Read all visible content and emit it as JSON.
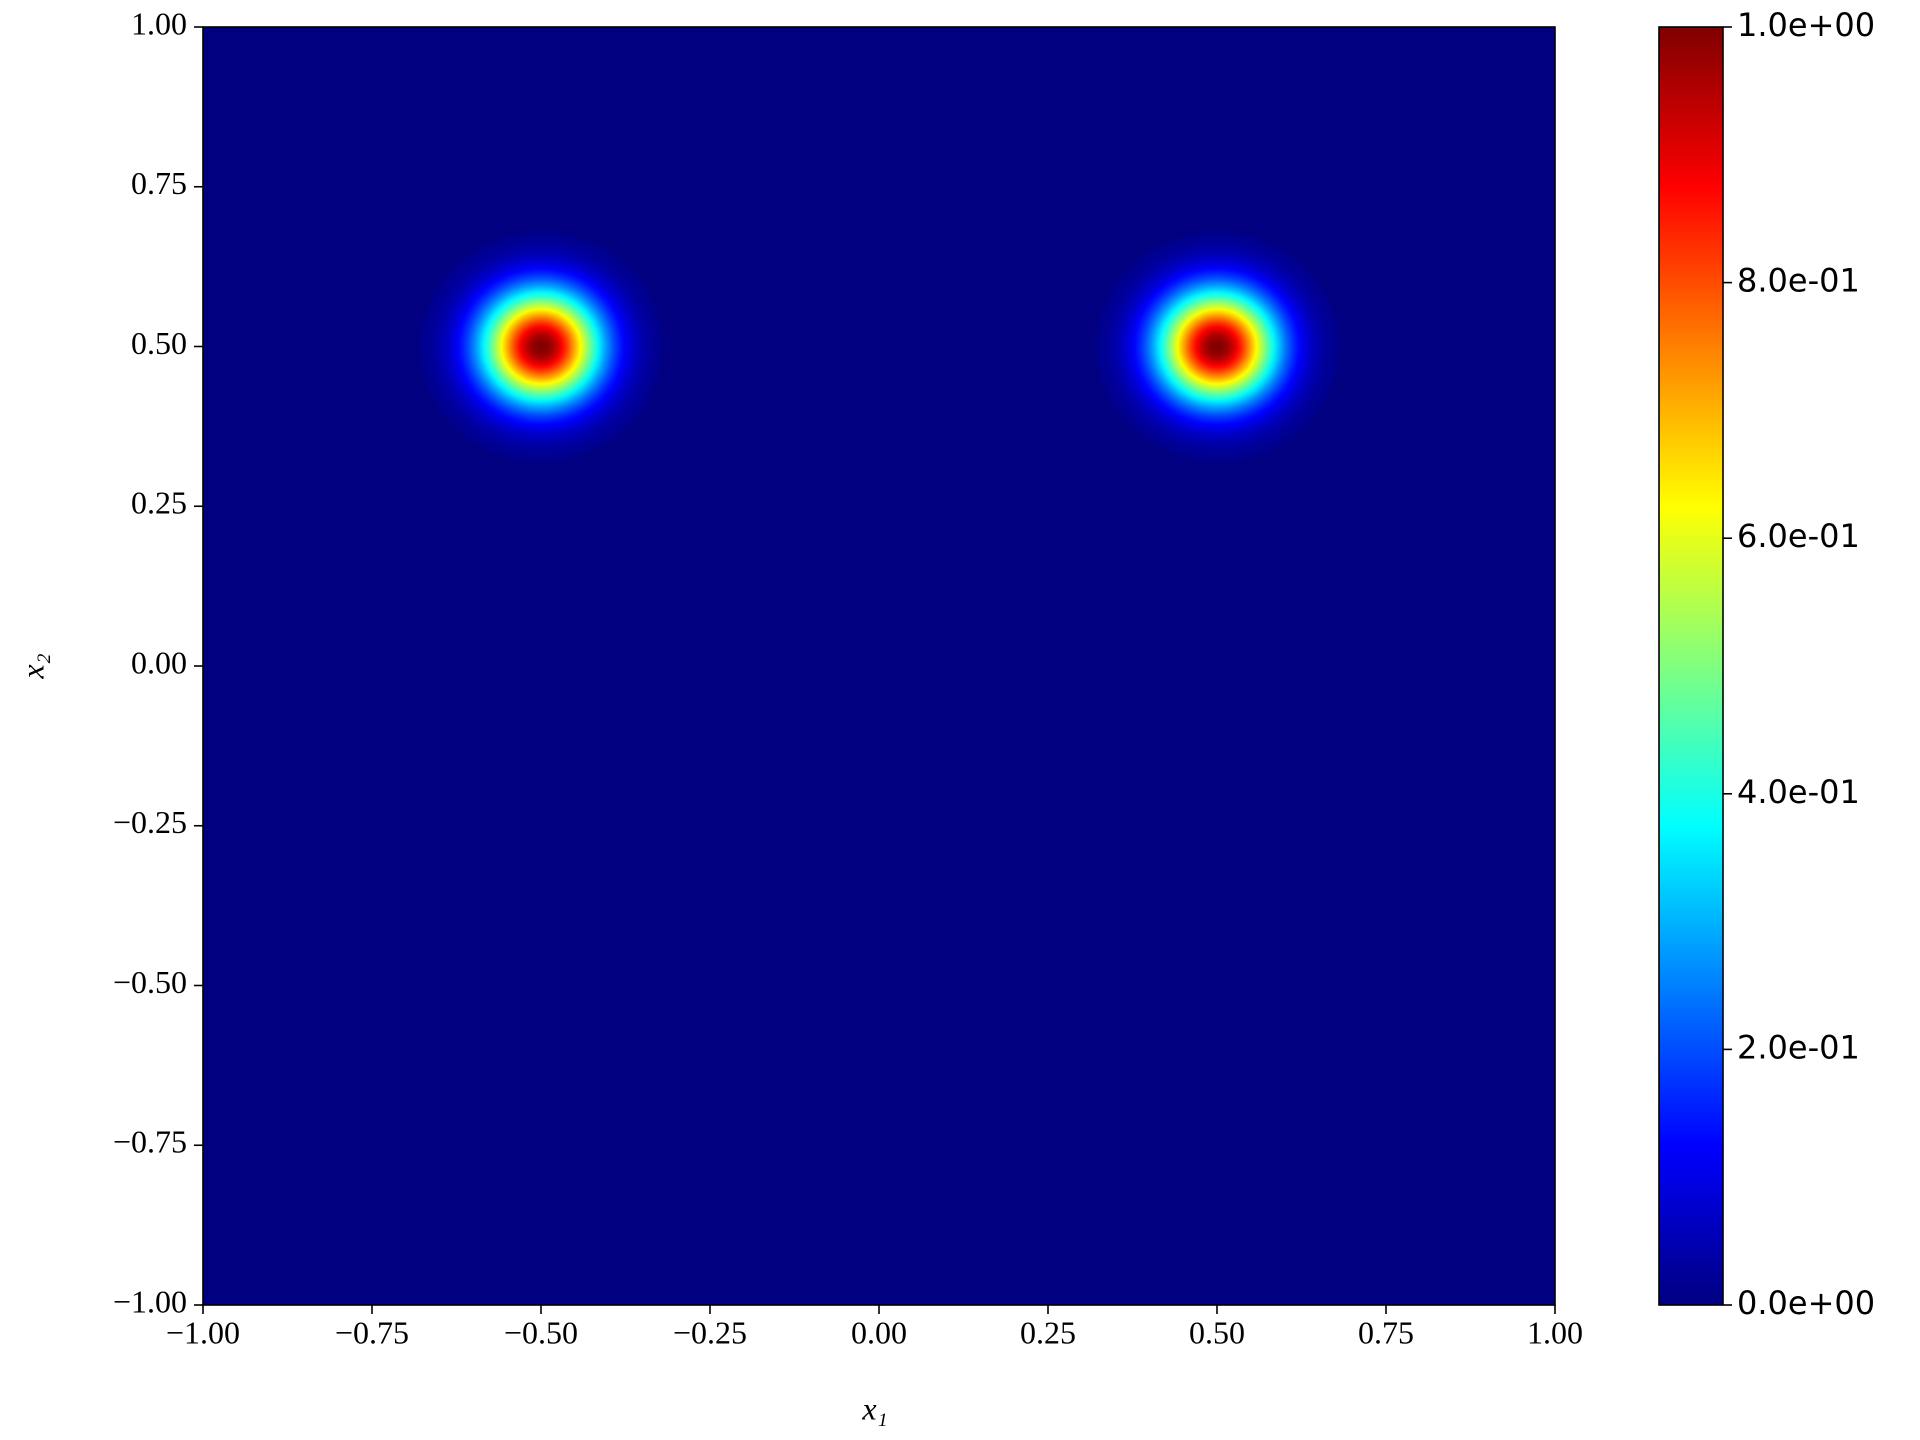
{
  "chart_data": {
    "type": "heatmap",
    "xlabel": "x₁",
    "ylabel": "x₂",
    "xlim": [
      -1,
      1
    ],
    "ylim": [
      -1,
      1
    ],
    "xticks": [
      {
        "value": -1,
        "label": "−1.00"
      },
      {
        "value": -0.75,
        "label": "−0.75"
      },
      {
        "value": -0.5,
        "label": "−0.50"
      },
      {
        "value": -0.25,
        "label": "−0.25"
      },
      {
        "value": 0,
        "label": "0.00"
      },
      {
        "value": 0.25,
        "label": "0.25"
      },
      {
        "value": 0.5,
        "label": "0.50"
      },
      {
        "value": 0.75,
        "label": "0.75"
      },
      {
        "value": 1,
        "label": "1.00"
      }
    ],
    "yticks": [
      {
        "value": -1,
        "label": "−1.00"
      },
      {
        "value": -0.75,
        "label": "−0.75"
      },
      {
        "value": -0.5,
        "label": "−0.50"
      },
      {
        "value": -0.25,
        "label": "−0.25"
      },
      {
        "value": 0,
        "label": "0.00"
      },
      {
        "value": 0.25,
        "label": "0.25"
      },
      {
        "value": 0.5,
        "label": "0.50"
      },
      {
        "value": 0.75,
        "label": "0.75"
      },
      {
        "value": 1,
        "label": "1.00"
      }
    ],
    "colormap": "jet",
    "clim": [
      0,
      1
    ],
    "cticks": [
      {
        "value": 0,
        "label": "0.0e+00"
      },
      {
        "value": 0.2,
        "label": "2.0e-01"
      },
      {
        "value": 0.4,
        "label": "4.0e-01"
      },
      {
        "value": 0.6,
        "label": "6.0e-01"
      },
      {
        "value": 0.8,
        "label": "8.0e-01"
      },
      {
        "value": 1,
        "label": "1.0e+00"
      }
    ],
    "background_value": 0,
    "peaks": [
      {
        "x": -0.5,
        "y": 0.5,
        "value": 1,
        "sigma": 0.06
      },
      {
        "x": 0.5,
        "y": 0.5,
        "value": 1,
        "sigma": 0.06
      }
    ]
  }
}
